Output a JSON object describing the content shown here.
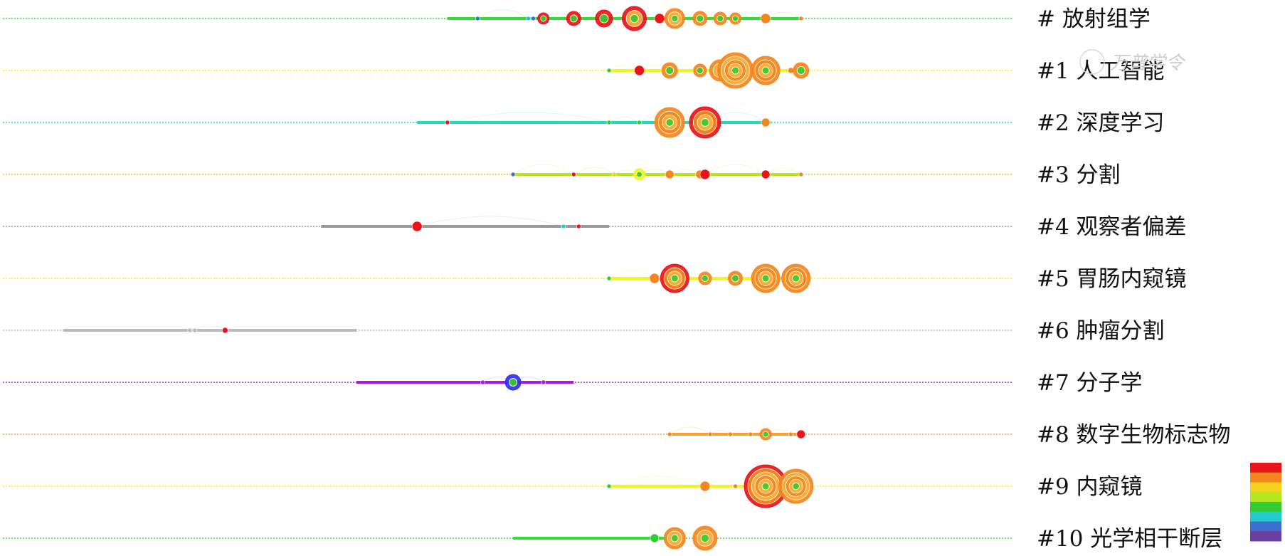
{
  "watermark": {
    "text": "万普学令"
  },
  "chart_data": {
    "type": "timeline",
    "title": "",
    "xlabel": "",
    "ylabel": "",
    "xlim": [
      0,
      1
    ],
    "legend": {
      "type": "color-gradient",
      "placement": "right",
      "colors": [
        "#e8151b",
        "#f5861f",
        "#f4d11d",
        "#b5e61d",
        "#33cc33",
        "#22cccc",
        "#3c6fd0",
        "#6b3fa0"
      ]
    },
    "clusters": [
      {
        "label": "# 放射组学",
        "color": "#33dd33",
        "span": [
          0.44,
          0.79
        ],
        "nodes": [
          [
            0.47,
            3,
            "#3c6fd0"
          ],
          [
            0.52,
            3,
            "#22bbee"
          ],
          [
            0.525,
            3,
            "#3c6fd0"
          ],
          [
            0.535,
            8,
            "#e8151b"
          ],
          [
            0.565,
            10,
            "#e8151b"
          ],
          [
            0.595,
            12,
            "#e8151b"
          ],
          [
            0.625,
            17,
            "#e8151b"
          ],
          [
            0.65,
            7,
            "#e8151b"
          ],
          [
            0.665,
            14,
            "#f5861f"
          ],
          [
            0.69,
            10,
            "#f5861f"
          ],
          [
            0.71,
            9,
            "#f5861f"
          ],
          [
            0.725,
            8,
            "#f5861f"
          ],
          [
            0.755,
            7,
            "#f5861f"
          ],
          [
            0.79,
            3,
            "#f5861f"
          ]
        ]
      },
      {
        "label": "#1 人工智能",
        "color": "#f4f41d",
        "span": [
          0.6,
          0.79
        ],
        "nodes": [
          [
            0.6,
            3,
            "#33cc33"
          ],
          [
            0.63,
            7,
            "#e8151b"
          ],
          [
            0.66,
            11,
            "#f5861f"
          ],
          [
            0.69,
            9,
            "#f5861f"
          ],
          [
            0.71,
            15,
            "#f5861f"
          ],
          [
            0.725,
            25,
            "#f5861f"
          ],
          [
            0.755,
            20,
            "#f5861f"
          ],
          [
            0.78,
            4,
            "#f5861f"
          ],
          [
            0.79,
            11,
            "#f5861f"
          ]
        ]
      },
      {
        "label": "#2 深度学习",
        "color": "#22ddbb",
        "span": [
          0.41,
          0.76
        ],
        "nodes": [
          [
            0.44,
            3,
            "#e8151b"
          ],
          [
            0.6,
            3,
            "#33cc33"
          ],
          [
            0.63,
            3,
            "#33cc33"
          ],
          [
            0.66,
            21,
            "#f5861f"
          ],
          [
            0.695,
            22,
            "#e8151b"
          ],
          [
            0.755,
            6,
            "#f5861f"
          ]
        ]
      },
      {
        "label": "#3 分割",
        "color": "#b5e61d",
        "span": [
          0.505,
          0.79
        ],
        "nodes": [
          [
            0.505,
            3,
            "#3c6fd0"
          ],
          [
            0.565,
            3,
            "#e8151b"
          ],
          [
            0.605,
            3,
            "#f4d11d"
          ],
          [
            0.63,
            8,
            "#f4f41d"
          ],
          [
            0.66,
            6,
            "#f5861f"
          ],
          [
            0.69,
            6,
            "#f5861f"
          ],
          [
            0.695,
            7,
            "#e8151b"
          ],
          [
            0.755,
            6,
            "#e8151b"
          ],
          [
            0.79,
            3,
            "#f5861f"
          ]
        ]
      },
      {
        "label": "#4 观察者偏差",
        "color": "#999999",
        "span": [
          0.315,
          0.6
        ],
        "nodes": [
          [
            0.41,
            7,
            "#e8151b"
          ],
          [
            0.555,
            3,
            "#22cccc"
          ],
          [
            0.57,
            3,
            "#e8151b"
          ]
        ]
      },
      {
        "label": "#5 胃肠内窥镜",
        "color": "#f4f41d",
        "span": [
          0.6,
          0.79
        ],
        "nodes": [
          [
            0.6,
            3,
            "#33cc33"
          ],
          [
            0.645,
            7,
            "#f5861f"
          ],
          [
            0.665,
            20,
            "#e8151b"
          ],
          [
            0.695,
            9,
            "#f5861f"
          ],
          [
            0.725,
            10,
            "#f5861f"
          ],
          [
            0.755,
            20,
            "#f5861f"
          ],
          [
            0.785,
            20,
            "#f5861f"
          ]
        ]
      },
      {
        "label": "#6 肿瘤分割",
        "color": "#bbbbbb",
        "span": [
          0.06,
          0.35
        ],
        "nodes": [
          [
            0.185,
            3,
            "#bbbbbb"
          ],
          [
            0.19,
            3,
            "#bbbbbb"
          ],
          [
            0.22,
            4,
            "#e8151b"
          ]
        ]
      },
      {
        "label": "#7 分子学",
        "color": "#a21de6",
        "span": [
          0.35,
          0.565
        ],
        "nodes": [
          [
            0.475,
            3,
            "#a21de6"
          ],
          [
            0.505,
            11,
            "#3030ee"
          ],
          [
            0.535,
            3,
            "#a21de6"
          ]
        ]
      },
      {
        "label": "#8 数字生物标志物",
        "color": "#f5a030",
        "span": [
          0.66,
          0.79
        ],
        "nodes": [
          [
            0.66,
            3,
            "#f5861f"
          ],
          [
            0.7,
            3,
            "#f5861f"
          ],
          [
            0.72,
            3,
            "#f5861f"
          ],
          [
            0.74,
            3,
            "#f5861f"
          ],
          [
            0.755,
            8,
            "#f5861f"
          ],
          [
            0.78,
            3,
            "#f5861f"
          ],
          [
            0.79,
            6,
            "#e8151b"
          ]
        ]
      },
      {
        "label": "#9 内窥镜",
        "color": "#f4f41d",
        "span": [
          0.6,
          0.79
        ],
        "nodes": [
          [
            0.6,
            3,
            "#33cc33"
          ],
          [
            0.695,
            7,
            "#f5861f"
          ],
          [
            0.725,
            3,
            "#f5861f"
          ],
          [
            0.755,
            30,
            "#e8151b"
          ],
          [
            0.785,
            24,
            "#f5861f"
          ]
        ]
      },
      {
        "label": "#10 光学相干断层",
        "color": "#33dd33",
        "span": [
          0.505,
          0.66
        ],
        "nodes": [
          [
            0.645,
            6,
            "#33cc33"
          ],
          [
            0.665,
            15,
            "#f5861f"
          ],
          [
            0.695,
            17,
            "#f5861f"
          ]
        ]
      }
    ]
  }
}
